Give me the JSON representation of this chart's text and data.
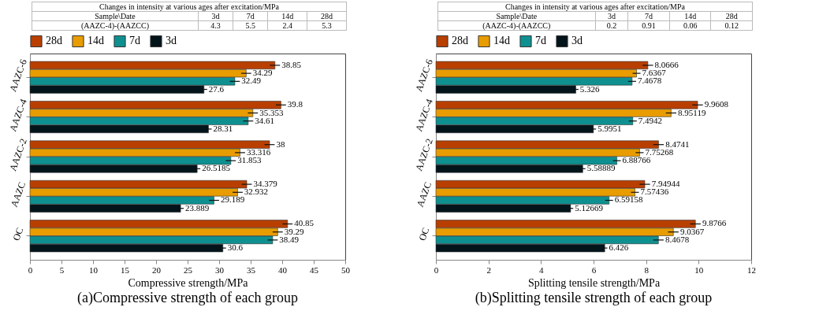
{
  "chart_data": [
    {
      "type": "bar",
      "orientation": "horizontal",
      "title": "(a)Compressive strength of each group",
      "xlabel": "Compressive strength/MPa",
      "categories": [
        "AAZC-6",
        "AAZC-4",
        "AAZC-2",
        "AAZC",
        "OC"
      ],
      "series": [
        {
          "name": "28d",
          "color": "#b83f00",
          "values": [
            38.85,
            39.8,
            38,
            34.379,
            40.85
          ],
          "errors": [
            0.8,
            0.8,
            0.8,
            0.8,
            0.8
          ]
        },
        {
          "name": "14d",
          "color": "#e89c00",
          "values": [
            34.29,
            35.353,
            33.316,
            32.932,
            39.29
          ],
          "errors": [
            0.8,
            0.8,
            0.8,
            0.8,
            0.8
          ]
        },
        {
          "name": "7d",
          "color": "#0f9090",
          "values": [
            32.49,
            34.61,
            31.853,
            29.189,
            38.49
          ],
          "errors": [
            0.8,
            0.8,
            0.8,
            0.8,
            0.8
          ]
        },
        {
          "name": "3d",
          "color": "#03141a",
          "values": [
            27.6,
            28.31,
            26.5185,
            23.889,
            30.6
          ],
          "errors": [
            0.5,
            0.5,
            0.5,
            0.5,
            0.5
          ]
        }
      ],
      "xlim": [
        0,
        50
      ],
      "xticks": [
        0,
        5,
        10,
        15,
        20,
        25,
        30,
        35,
        40,
        45,
        50
      ],
      "data_labels": true,
      "legend": "top",
      "annotations": [
        "Changes in intensity at various ages after excitation/MPa",
        "Sample\\Date",
        "3d",
        "7d",
        "14d",
        "28d",
        "(AAZC-4)-(AAZCC)",
        "4.3",
        "5.5",
        "2.4",
        "5.3"
      ]
    },
    {
      "type": "bar",
      "orientation": "horizontal",
      "title": "(b)Splitting tensile strength of each group",
      "xlabel": "Splitting tensile strength/MPa",
      "categories": [
        "AAZC-6",
        "AAZC-4",
        "AAZC-2",
        "AAZC",
        "OC"
      ],
      "series": [
        {
          "name": "28d",
          "color": "#b83f00",
          "values": [
            8.0666,
            9.9608,
            8.4741,
            7.94944,
            9.8766
          ],
          "errors": [
            0.2,
            0.2,
            0.2,
            0.2,
            0.2
          ]
        },
        {
          "name": "14d",
          "color": "#e89c00",
          "values": [
            7.6367,
            8.95119,
            7.75268,
            7.57436,
            9.0367
          ],
          "errors": [
            0.15,
            0.2,
            0.15,
            0.15,
            0.2
          ]
        },
        {
          "name": "7d",
          "color": "#0f9090",
          "values": [
            7.4678,
            7.4942,
            6.88766,
            6.59158,
            8.4678
          ],
          "errors": [
            0.15,
            0.15,
            0.15,
            0.15,
            0.2
          ]
        },
        {
          "name": "3d",
          "color": "#03141a",
          "values": [
            5.326,
            5.9951,
            5.58889,
            5.12669,
            6.426
          ],
          "errors": [
            0.1,
            0.1,
            0.1,
            0.1,
            0.1
          ]
        }
      ],
      "xlim": [
        0,
        12
      ],
      "xticks": [
        0,
        2,
        4,
        6,
        8,
        10,
        12
      ],
      "data_labels": true,
      "legend": "top",
      "annotations": [
        "Changes in intensity at various ages after excitation/MPa",
        "Sample\\Date",
        "3d",
        "7d",
        "14d",
        "28d",
        "(AAZC-4)-(AAZCC)",
        "0.2",
        "0.91",
        "0.06",
        "0.12"
      ]
    }
  ]
}
